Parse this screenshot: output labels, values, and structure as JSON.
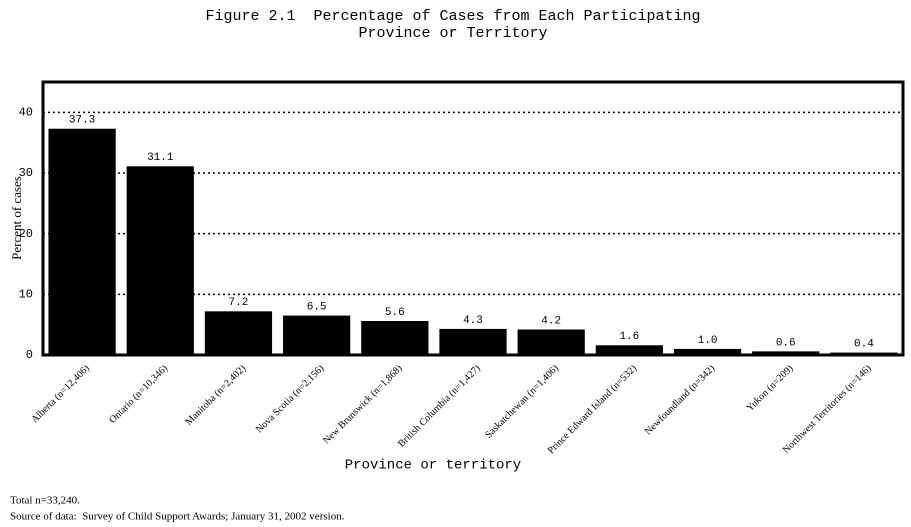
{
  "chart_data": {
    "type": "bar",
    "title": [
      "Figure 2.1  Percentage of Cases from Each Participating",
      "Province or Territory"
    ],
    "xlabel": "Province or territory",
    "ylabel": "Percent of cases",
    "categories": [
      "Alberta (n=12,406)",
      "Ontario (n=10,346)",
      "Manitoba (n=2,402)",
      "Nova Scotia (n=2,156)",
      "New Brunswick (n=1,868)",
      "British Columbia (n=1,427)",
      "Saskatchewan (n=1,406)",
      "Prince Edward Island (n=532)",
      "Newfoundland (n=342)",
      "Yukon (n=209)",
      "Northwest Territories (n=146)"
    ],
    "values": [
      37.3,
      31.1,
      7.2,
      6.5,
      5.6,
      4.3,
      4.2,
      1.6,
      1.0,
      0.6,
      0.4
    ],
    "value_labels": [
      "37.3",
      "31.1",
      "7.2",
      "6.5",
      "5.6",
      "4.3",
      "4.2",
      "1.6",
      "1.0",
      "0.6",
      "0.4"
    ],
    "color": "#000000",
    "ylim": [
      0,
      45
    ],
    "yticks": [
      0,
      10,
      20,
      30,
      40
    ],
    "grid": true,
    "notes": [
      "Total n=33,240.",
      "Source of data:  Survey of Child Support Awards; January 31, 2002 version."
    ]
  }
}
